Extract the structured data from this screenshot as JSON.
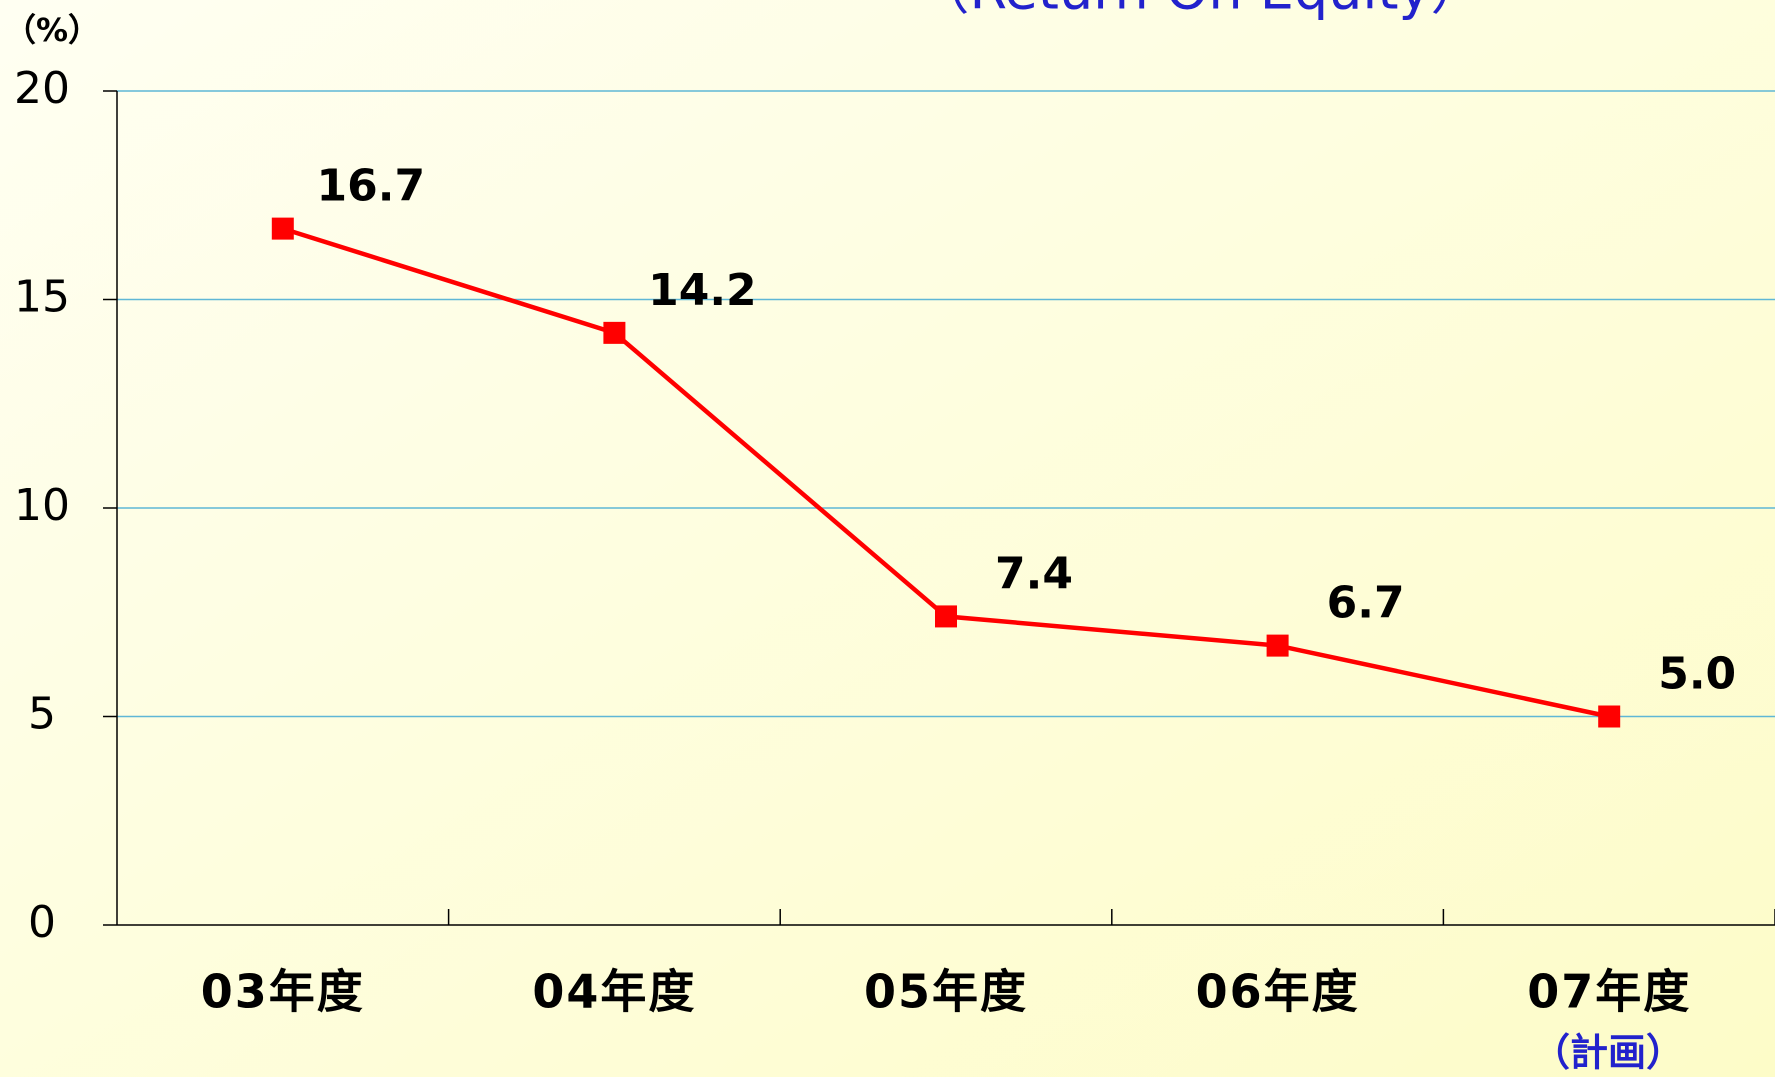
{
  "chart_data": {
    "type": "line",
    "title": "（Return  On  Equity）",
    "y_unit": "（%）",
    "annotation": "（計画）",
    "categories": [
      "03年度",
      "04年度",
      "05年度",
      "06年度",
      "07年度"
    ],
    "series": [
      {
        "name": "ROE",
        "color": "#ff0000",
        "values": [
          16.7,
          14.2,
          7.4,
          6.7,
          5.0
        ],
        "value_labels": [
          "16.7",
          "14.2",
          "7.4",
          "6.7",
          "5.0"
        ]
      }
    ],
    "ylim": [
      0,
      20
    ],
    "yticks": [
      0,
      5,
      10,
      15,
      20
    ],
    "grid": true
  }
}
